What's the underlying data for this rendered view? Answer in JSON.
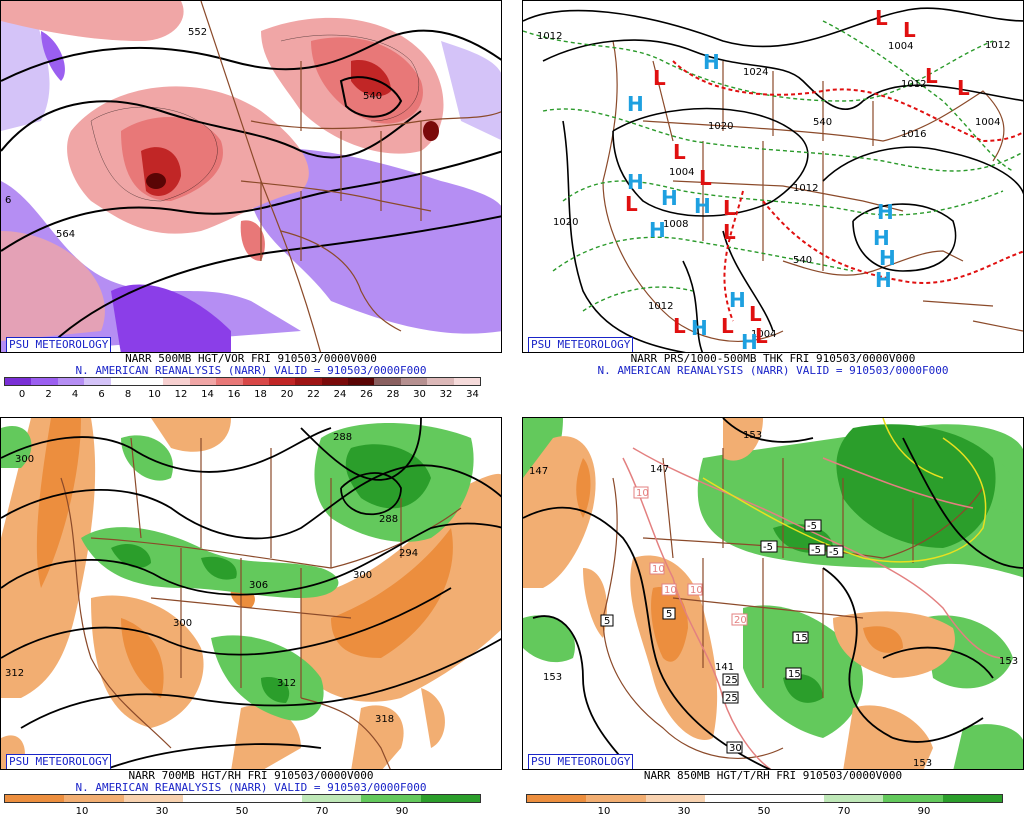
{
  "brand": "PSU METEOROLOGY",
  "panels": [
    {
      "id": "vort500",
      "caption1": "NARR 500MB HGT/VOR FRI 910503/0000V000",
      "caption2": "N. AMERICAN REANALYSIS (NARR) VALID = 910503/0000F000",
      "colorbar": [
        "#7a2fd6",
        "#9b5ff0",
        "#b58ef3",
        "#d4c3f8",
        "#ffffff",
        "#ffffff",
        "#f7d0d0",
        "#f0a6a6",
        "#e87878",
        "#d84848",
        "#c12626",
        "#9e1414",
        "#7a0a0a",
        "#5a0505",
        "#8a6060",
        "#b69090",
        "#dcb8b8",
        "#f5dada"
      ],
      "ticks": [
        "0",
        "2",
        "4",
        "6",
        "8",
        "10",
        "12",
        "14",
        "16",
        "18",
        "20",
        "22",
        "24",
        "26",
        "28",
        "30",
        "32",
        "34"
      ],
      "contour_labels": [
        "552",
        "540",
        "564",
        "6"
      ]
    },
    {
      "id": "mslp",
      "caption1": "NARR PRS/1000-500MB THK FRI 910503/0000V000",
      "caption2": "N. AMERICAN REANALYSIS (NARR) VALID = 910503/0000F000",
      "contour_labels": [
        "1012",
        "1004",
        "1012",
        "1024",
        "1020",
        "1004",
        "1016",
        "1008",
        "1012",
        "1020",
        "540",
        "1012",
        "1004",
        "540",
        "1012",
        "1004"
      ],
      "high_symbol": "H",
      "low_symbol": "L"
    },
    {
      "id": "rh700",
      "caption1": "NARR 700MB HGT/RH FRI 910503/0000V000",
      "caption2": "N. AMERICAN REANALYSIS (NARR) VALID = 910503/0000F000",
      "colorbar": [
        "#ec8e3e",
        "#f2ae72",
        "#f8d2b0",
        "#ffffff",
        "#ffffff",
        "#bfe8b8",
        "#63c95c",
        "#2b9e2b"
      ],
      "ticks": [
        "10",
        "30",
        "50",
        "70",
        "90"
      ],
      "contour_labels": [
        "300",
        "288",
        "288",
        "294",
        "306",
        "300",
        "300",
        "312",
        "312",
        "318"
      ]
    },
    {
      "id": "t850",
      "caption1": "NARR 850MB HGT/T/RH FRI 910503/0000V000",
      "caption2": "",
      "colorbar": [
        "#ec8e3e",
        "#f2ae72",
        "#f8d2b0",
        "#ffffff",
        "#ffffff",
        "#bfe8b8",
        "#63c95c",
        "#2b9e2b"
      ],
      "ticks": [
        "10",
        "30",
        "50",
        "70",
        "90"
      ],
      "contour_labels": [
        "153",
        "147",
        "147",
        "141",
        "153",
        "153",
        "153"
      ],
      "temp_labels": [
        "10",
        "10",
        "10",
        "10",
        "5",
        "5",
        "-5",
        "-5",
        "-5",
        "-5",
        "20",
        "15",
        "15",
        "25",
        "25",
        "30"
      ]
    }
  ],
  "colors": {
    "brand_blue": "#1a24c8",
    "high_blue": "#1ea0e0",
    "low_red": "#e01010",
    "border_brown": "#8b4a2a",
    "contour_black": "#000000",
    "thickness_green": "#2a9a2a",
    "thickness_red": "#e01010"
  }
}
